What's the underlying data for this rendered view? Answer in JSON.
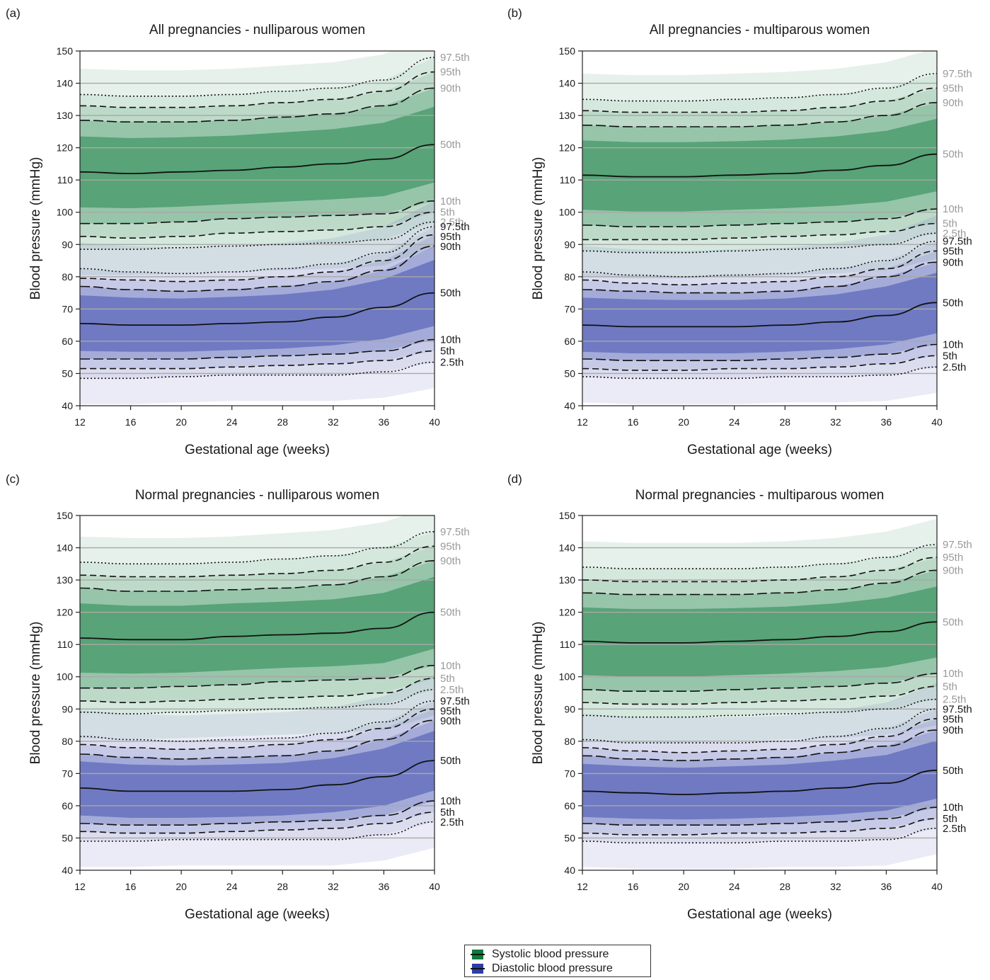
{
  "legend": {
    "systolic_label": "Systolic blood pressure",
    "diastolic_label": "Diastolic blood pressure",
    "systolic_color": "#0d7a3a",
    "diastolic_color": "#2e3ea8"
  },
  "colors": {
    "systolic_band": "#0d7a3a",
    "diastolic_band": "#2e3ea8",
    "systolic_label_gray": "#9a9a9a",
    "diastolic_label_black": "#1a1a1a",
    "grid": "#a8a8a8"
  },
  "chart_data": [
    {
      "panel": "(a)",
      "type": "line",
      "title": "All pregnancies - nulliparous women",
      "xlabel": "Gestational age (weeks)",
      "ylabel": "Blood pressure (mmHg)",
      "xlim": [
        12,
        40
      ],
      "ylim": [
        40,
        150
      ],
      "x_ticks": [
        12,
        16,
        20,
        24,
        28,
        32,
        36,
        40
      ],
      "y_ticks": [
        40,
        50,
        60,
        70,
        80,
        90,
        100,
        110,
        120,
        130,
        140,
        150
      ],
      "x": [
        12,
        16,
        20,
        24,
        28,
        32,
        36,
        40
      ],
      "grid": "horizontal",
      "series": [
        {
          "name": "97.5th",
          "group": "systolic",
          "values": [
            136.5,
            136,
            136,
            136.5,
            137.5,
            138.5,
            141,
            148
          ]
        },
        {
          "name": "95th",
          "group": "systolic",
          "values": [
            133,
            132.5,
            132.5,
            133,
            134,
            135,
            137.5,
            143.5
          ]
        },
        {
          "name": "90th",
          "group": "systolic",
          "values": [
            128.5,
            128,
            128,
            128.5,
            129.5,
            130.5,
            133,
            138.5
          ]
        },
        {
          "name": "50th",
          "group": "systolic",
          "values": [
            112.5,
            112,
            112.5,
            113,
            114,
            115,
            116.5,
            121
          ]
        },
        {
          "name": "10th",
          "group": "systolic",
          "values": [
            96.5,
            96.5,
            97,
            98,
            98.5,
            99,
            99.5,
            103.5
          ]
        },
        {
          "name": "5th",
          "group": "systolic",
          "values": [
            92.5,
            92,
            92.5,
            93.5,
            94,
            94.5,
            95.5,
            100
          ]
        },
        {
          "name": "2.5th",
          "group": "systolic",
          "values": [
            88.5,
            88.5,
            89,
            89.5,
            90,
            90.5,
            91.5,
            97
          ]
        },
        {
          "name": "97.5th",
          "group": "diastolic",
          "values": [
            82.5,
            81.5,
            81,
            81.5,
            82.5,
            84,
            87.5,
            95.5
          ]
        },
        {
          "name": "95th",
          "group": "diastolic",
          "values": [
            79.5,
            79,
            78.5,
            79,
            80,
            81.5,
            85,
            93
          ]
        },
        {
          "name": "90th",
          "group": "diastolic",
          "values": [
            77,
            76,
            75.5,
            76,
            77,
            78.5,
            82,
            89.5
          ]
        },
        {
          "name": "50th",
          "group": "diastolic",
          "values": [
            65.5,
            65,
            65,
            65.5,
            66,
            67.5,
            70.5,
            75
          ]
        },
        {
          "name": "10th",
          "group": "diastolic",
          "values": [
            54.5,
            54.5,
            54.5,
            55,
            55.5,
            56,
            57,
            60.5
          ]
        },
        {
          "name": "5th",
          "group": "diastolic",
          "values": [
            51.5,
            51.5,
            51.5,
            52,
            52.5,
            53,
            54,
            57
          ]
        },
        {
          "name": "2.5th",
          "group": "diastolic",
          "values": [
            48.5,
            48.5,
            49,
            49.5,
            49.5,
            49.5,
            50.5,
            53.5
          ]
        }
      ]
    },
    {
      "panel": "(b)",
      "type": "line",
      "title": "All pregnancies - multiparous women",
      "xlabel": "Gestational age (weeks)",
      "ylabel": "Blood pressure (mmHg)",
      "xlim": [
        12,
        40
      ],
      "ylim": [
        40,
        150
      ],
      "x_ticks": [
        12,
        16,
        20,
        24,
        28,
        32,
        36,
        40
      ],
      "y_ticks": [
        40,
        50,
        60,
        70,
        80,
        90,
        100,
        110,
        120,
        130,
        140,
        150
      ],
      "x": [
        12,
        16,
        20,
        24,
        28,
        32,
        36,
        40
      ],
      "grid": "horizontal",
      "series": [
        {
          "name": "97.5th",
          "group": "systolic",
          "values": [
            135,
            134.5,
            134.5,
            135,
            135.5,
            136.5,
            138.5,
            143
          ]
        },
        {
          "name": "95th",
          "group": "systolic",
          "values": [
            131.5,
            131,
            131,
            131,
            131.5,
            132.5,
            134.5,
            138.5
          ]
        },
        {
          "name": "90th",
          "group": "systolic",
          "values": [
            127,
            126.5,
            126.5,
            126.5,
            127,
            128,
            130,
            134
          ]
        },
        {
          "name": "50th",
          "group": "systolic",
          "values": [
            111.5,
            111,
            111,
            111.5,
            112,
            113,
            114.5,
            118
          ]
        },
        {
          "name": "10th",
          "group": "systolic",
          "values": [
            96,
            95.5,
            95.5,
            96,
            96.5,
            97,
            98,
            101
          ]
        },
        {
          "name": "5th",
          "group": "systolic",
          "values": [
            91.5,
            91.5,
            91.5,
            92,
            92.5,
            93,
            94,
            96.5
          ]
        },
        {
          "name": "2.5th",
          "group": "systolic",
          "values": [
            88,
            87.5,
            87.5,
            88,
            88.5,
            89,
            90,
            93.5
          ]
        },
        {
          "name": "97.5th",
          "group": "diastolic",
          "values": [
            81.5,
            80.5,
            80,
            80.5,
            81,
            82.5,
            85,
            91
          ]
        },
        {
          "name": "95th",
          "group": "diastolic",
          "values": [
            79,
            78,
            77.5,
            78,
            78.5,
            80,
            82.5,
            88
          ]
        },
        {
          "name": "90th",
          "group": "diastolic",
          "values": [
            76,
            75.5,
            75,
            75,
            75.5,
            77,
            80,
            84.5
          ]
        },
        {
          "name": "50th",
          "group": "diastolic",
          "values": [
            65,
            64.5,
            64.5,
            64.5,
            65,
            66,
            68,
            72
          ]
        },
        {
          "name": "10th",
          "group": "diastolic",
          "values": [
            54.5,
            54,
            54,
            54,
            54.5,
            55,
            56,
            59
          ]
        },
        {
          "name": "5th",
          "group": "diastolic",
          "values": [
            51.5,
            51,
            51,
            51.5,
            51.5,
            52,
            53,
            55.5
          ]
        },
        {
          "name": "2.5th",
          "group": "diastolic",
          "values": [
            49,
            48.5,
            48.5,
            48.5,
            49,
            49,
            49.5,
            52
          ]
        }
      ]
    },
    {
      "panel": "(c)",
      "type": "line",
      "title": "Normal pregnancies - nulliparous women",
      "xlabel": "Gestational age (weeks)",
      "ylabel": "Blood pressure (mmHg)",
      "xlim": [
        12,
        40
      ],
      "ylim": [
        40,
        150
      ],
      "x_ticks": [
        12,
        16,
        20,
        24,
        28,
        32,
        36,
        40
      ],
      "y_ticks": [
        40,
        50,
        60,
        70,
        80,
        90,
        100,
        110,
        120,
        130,
        140,
        150
      ],
      "x": [
        12,
        16,
        20,
        24,
        28,
        32,
        36,
        40
      ],
      "grid": "horizontal",
      "series": [
        {
          "name": "97.5th",
          "group": "systolic",
          "values": [
            135.5,
            135,
            135,
            135.5,
            136.5,
            137.5,
            140,
            145
          ]
        },
        {
          "name": "95th",
          "group": "systolic",
          "values": [
            131.5,
            131,
            131,
            131.5,
            132,
            133,
            135.5,
            140.5
          ]
        },
        {
          "name": "90th",
          "group": "systolic",
          "values": [
            127.5,
            126.5,
            126.5,
            127,
            127.5,
            128.5,
            131,
            136
          ]
        },
        {
          "name": "50th",
          "group": "systolic",
          "values": [
            112,
            111.5,
            111.5,
            112.5,
            113,
            113.5,
            115,
            120
          ]
        },
        {
          "name": "10th",
          "group": "systolic",
          "values": [
            96.5,
            96.5,
            97,
            97.5,
            98.5,
            99,
            99.5,
            103.5
          ]
        },
        {
          "name": "5th",
          "group": "systolic",
          "values": [
            92.5,
            92,
            92.5,
            93,
            93.5,
            94,
            95,
            99.5
          ]
        },
        {
          "name": "2.5th",
          "group": "systolic",
          "values": [
            89,
            88.5,
            89,
            89.5,
            90,
            90.5,
            91.5,
            96
          ]
        },
        {
          "name": "97.5th",
          "group": "diastolic",
          "values": [
            81.5,
            80.5,
            80,
            80.5,
            81,
            82.5,
            86,
            92.5
          ]
        },
        {
          "name": "95th",
          "group": "diastolic",
          "values": [
            79,
            78,
            77.5,
            78,
            79,
            80.5,
            84,
            90
          ]
        },
        {
          "name": "90th",
          "group": "diastolic",
          "values": [
            76,
            75,
            74.5,
            75,
            75.5,
            77,
            80.5,
            86.5
          ]
        },
        {
          "name": "50th",
          "group": "diastolic",
          "values": [
            65.5,
            64.5,
            64.5,
            64.5,
            65,
            66.5,
            69,
            74
          ]
        },
        {
          "name": "10th",
          "group": "diastolic",
          "values": [
            54.5,
            54,
            54,
            54.5,
            55,
            55.5,
            57,
            61.5
          ]
        },
        {
          "name": "5th",
          "group": "diastolic",
          "values": [
            52,
            51.5,
            51.5,
            52,
            52.5,
            53,
            54.5,
            58
          ]
        },
        {
          "name": "2.5th",
          "group": "diastolic",
          "values": [
            49,
            49,
            49.5,
            49.5,
            49.5,
            49.5,
            51,
            55
          ]
        }
      ]
    },
    {
      "panel": "(d)",
      "type": "line",
      "title": "Normal pregnancies - multiparous women",
      "xlabel": "Gestational age (weeks)",
      "ylabel": "Blood pressure (mmHg)",
      "xlim": [
        12,
        40
      ],
      "ylim": [
        40,
        150
      ],
      "x_ticks": [
        12,
        16,
        20,
        24,
        28,
        32,
        36,
        40
      ],
      "y_ticks": [
        40,
        50,
        60,
        70,
        80,
        90,
        100,
        110,
        120,
        130,
        140,
        150
      ],
      "x": [
        12,
        16,
        20,
        24,
        28,
        32,
        36,
        40
      ],
      "grid": "horizontal",
      "series": [
        {
          "name": "97.5th",
          "group": "systolic",
          "values": [
            134,
            133.5,
            133.5,
            133.5,
            134,
            135,
            137,
            141
          ]
        },
        {
          "name": "95th",
          "group": "systolic",
          "values": [
            130,
            129.5,
            129.5,
            129.5,
            130,
            131,
            133,
            137
          ]
        },
        {
          "name": "90th",
          "group": "systolic",
          "values": [
            126,
            125.5,
            125.5,
            125.5,
            126,
            127,
            129,
            133
          ]
        },
        {
          "name": "50th",
          "group": "systolic",
          "values": [
            111,
            110.5,
            110.5,
            111,
            111.5,
            112.5,
            114,
            117
          ]
        },
        {
          "name": "10th",
          "group": "systolic",
          "values": [
            96,
            95.5,
            95.5,
            96,
            96.5,
            97,
            98,
            101
          ]
        },
        {
          "name": "5th",
          "group": "systolic",
          "values": [
            92,
            91.5,
            91.5,
            92,
            92.5,
            93,
            94,
            97
          ]
        },
        {
          "name": "2.5th",
          "group": "systolic",
          "values": [
            88,
            87.5,
            87.5,
            88,
            88.5,
            89,
            90,
            93
          ]
        },
        {
          "name": "97.5th",
          "group": "diastolic",
          "values": [
            80.5,
            79.5,
            79.5,
            79.5,
            80,
            81.5,
            84,
            90
          ]
        },
        {
          "name": "95th",
          "group": "diastolic",
          "values": [
            78,
            77,
            76.5,
            77,
            77.5,
            79,
            81.5,
            87
          ]
        },
        {
          "name": "90th",
          "group": "diastolic",
          "values": [
            75.5,
            74.5,
            74,
            74.5,
            75,
            76.5,
            78.5,
            83.5
          ]
        },
        {
          "name": "50th",
          "group": "diastolic",
          "values": [
            64.5,
            64,
            63.5,
            64,
            64.5,
            65.5,
            67,
            71
          ]
        },
        {
          "name": "10th",
          "group": "diastolic",
          "values": [
            54.5,
            54,
            54,
            54,
            54.5,
            55,
            56,
            59.5
          ]
        },
        {
          "name": "5th",
          "group": "diastolic",
          "values": [
            51.5,
            51,
            51,
            51.5,
            51.5,
            52,
            53,
            56
          ]
        },
        {
          "name": "2.5th",
          "group": "diastolic",
          "values": [
            49,
            48.5,
            48.5,
            48.5,
            49,
            49,
            49.5,
            53
          ]
        }
      ]
    }
  ]
}
